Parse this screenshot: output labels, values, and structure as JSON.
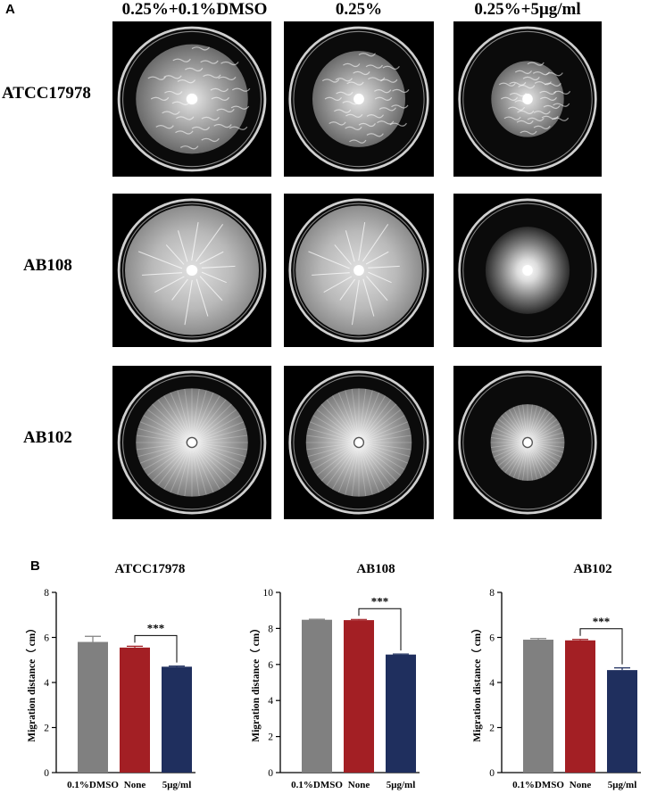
{
  "panel_a": {
    "label": "A",
    "columns": [
      "0.25%+0.1%DMSO",
      "0.25%",
      "0.25%+5μg/ml"
    ],
    "rows": [
      "ATCC17978",
      "AB108",
      "AB102"
    ],
    "plates": [
      [
        {
          "colony_fraction": 0.82,
          "style": "wrinkled"
        },
        {
          "colony_fraction": 0.72,
          "style": "wrinkled"
        },
        {
          "colony_fraction": 0.57,
          "style": "wrinkled"
        }
      ],
      [
        {
          "colony_fraction": 0.98,
          "style": "veined"
        },
        {
          "colony_fraction": 0.98,
          "style": "veined"
        },
        {
          "colony_fraction": 0.66,
          "style": "diffuse"
        }
      ],
      [
        {
          "colony_fraction": 0.82,
          "style": "radial"
        },
        {
          "colony_fraction": 0.82,
          "style": "radial"
        },
        {
          "colony_fraction": 0.58,
          "style": "radial"
        }
      ]
    ]
  },
  "panel_b": {
    "label": "B"
  },
  "chart_data": [
    {
      "type": "bar",
      "title": "ATCC17978",
      "ylabel": "Migration distance（ cm）",
      "categories": [
        "0.1%DMSO",
        "None",
        "5μg/ml"
      ],
      "values": [
        5.8,
        5.55,
        4.7
      ],
      "errors": [
        0.25,
        0.06,
        0.03
      ],
      "ylim": [
        0,
        8
      ],
      "yticks": [
        0,
        2,
        4,
        6,
        8
      ],
      "colors": [
        "#808080",
        "#a31f24",
        "#1f2f5e"
      ],
      "significance": {
        "between": [
          1,
          2
        ],
        "label": "***"
      }
    },
    {
      "type": "bar",
      "title": "AB108",
      "ylabel": "Migration distance（ cm）",
      "categories": [
        "0.1%DMSO",
        "None",
        "5μg/ml"
      ],
      "values": [
        8.48,
        8.46,
        6.55
      ],
      "errors": [
        0.03,
        0.04,
        0.03
      ],
      "ylim": [
        0,
        10
      ],
      "yticks": [
        0,
        2,
        4,
        6,
        8,
        10
      ],
      "colors": [
        "#808080",
        "#a31f24",
        "#1f2f5e"
      ],
      "significance": {
        "between": [
          1,
          2
        ],
        "label": "***"
      }
    },
    {
      "type": "bar",
      "title": "AB102",
      "ylabel": "Migration distance（ cm）",
      "categories": [
        "0.1%DMSO",
        "None",
        "5μg/ml"
      ],
      "values": [
        5.9,
        5.87,
        4.55
      ],
      "errors": [
        0.05,
        0.04,
        0.1
      ],
      "ylim": [
        0,
        8
      ],
      "yticks": [
        0,
        2,
        4,
        6,
        8
      ],
      "colors": [
        "#808080",
        "#a31f24",
        "#1f2f5e"
      ],
      "significance": {
        "between": [
          1,
          2
        ],
        "label": "***"
      }
    }
  ]
}
